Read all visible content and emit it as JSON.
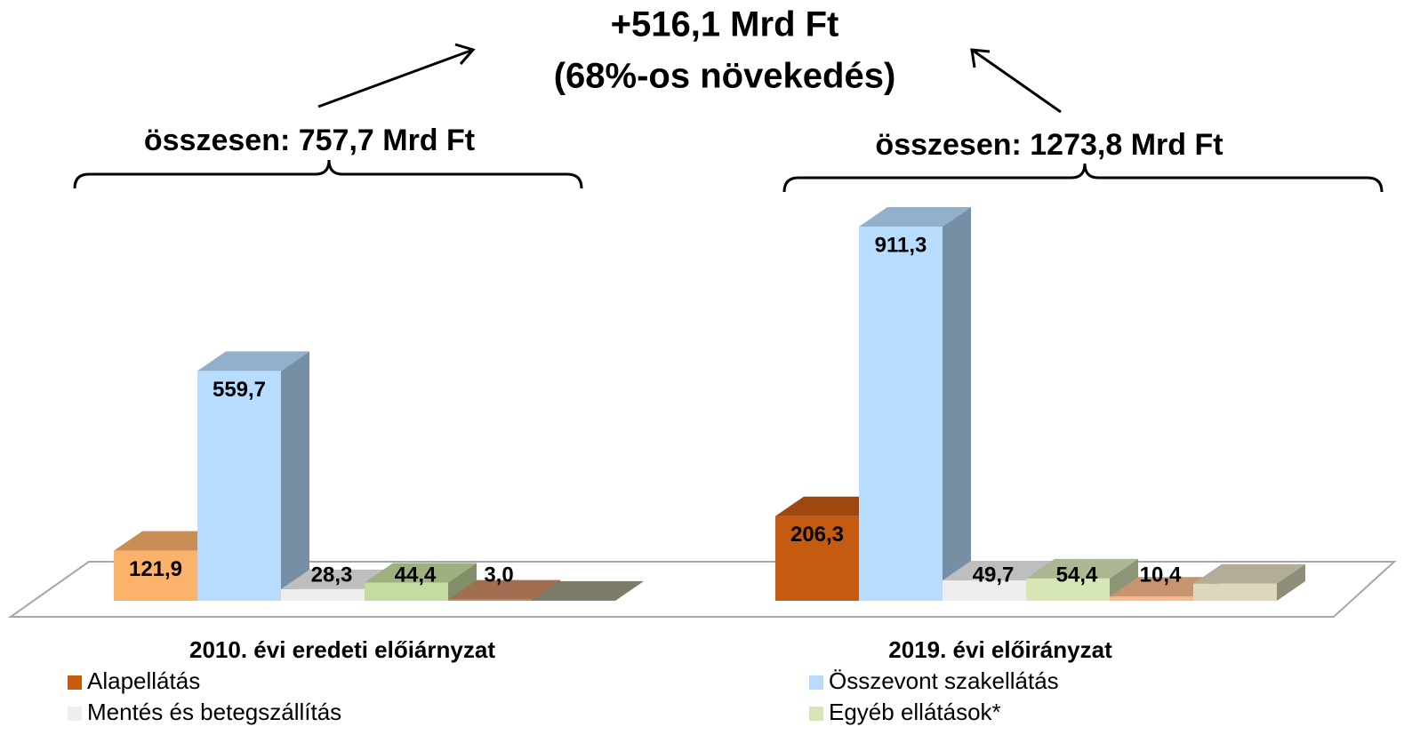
{
  "chart_data": {
    "type": "bar3d",
    "annotations": [
      "+516,1 Mrd Ft",
      "(68%-os növekedés)",
      "összesen: 757,7 Mrd Ft",
      "összesen: 1273,8 Mrd Ft"
    ],
    "categories": [
      "2010. évi eredeti előiárnyzat",
      "2019. évi előirányzat"
    ],
    "series": [
      {
        "name": "Alapellátás",
        "color": "#c55a11",
        "colors": [
          "#fbb26b",
          "#c55a11"
        ],
        "values": [
          121.9,
          206.3
        ],
        "value_labels": [
          "121,9",
          "206,3"
        ]
      },
      {
        "name": "Összevont szakellátás",
        "color": "#b7dcfd",
        "colors": [
          "#b7dcfd",
          "#b7dcfd"
        ],
        "values": [
          559.7,
          911.3
        ],
        "value_labels": [
          "559,7",
          "911,3"
        ]
      },
      {
        "name": "Mentés és betegszállítás",
        "color": "#eeeeee",
        "colors": [
          "#eeeeee",
          "#eeeeee"
        ],
        "values": [
          28.3,
          49.7
        ],
        "value_labels": [
          "28,3",
          "49,7"
        ]
      },
      {
        "name": "Egyéb ellátások*",
        "color": "#d6e6b5",
        "colors": [
          "#c5dca0",
          "#d6e6b5"
        ],
        "values": [
          44.4,
          54.4
        ],
        "value_labels": [
          "44,4",
          "54,4"
        ]
      },
      {
        "color": "#c98a65",
        "colors": [
          "#c98a65",
          "#f8b98a"
        ],
        "values": [
          3.0,
          10.4
        ],
        "value_labels": [
          "3,0",
          "10,4"
        ]
      },
      {
        "color": "#9c9a84",
        "colors": [
          "#9c9a84",
          "#ddd8bc"
        ],
        "values": [
          0.4,
          41.7
        ]
      }
    ]
  }
}
